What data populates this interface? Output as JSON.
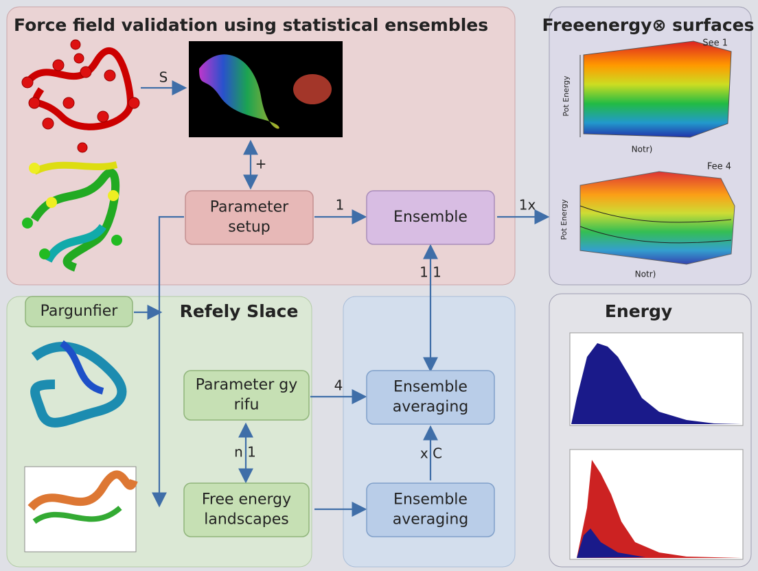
{
  "header": {
    "title": "Force field validation using statistical ensembles"
  },
  "panels": {
    "surfaces": {
      "title": "Freeenergy⊗ surfaces",
      "plot1": {
        "label": "See 1",
        "ylabel": "Pot Energy",
        "xlabel": "Notr)"
      },
      "plot2": {
        "label": "Fee 4",
        "ylabel": "Pot Energy",
        "xlabel": "Notr)"
      }
    },
    "refine": {
      "title": "Refely Slace"
    },
    "energy": {
      "title": "Energy"
    }
  },
  "nodes": [
    {
      "label": [
        "Parameter",
        "setup"
      ]
    },
    {
      "label": [
        "Ensemble"
      ]
    },
    {
      "label": [
        "Pargunfier"
      ]
    },
    {
      "label": [
        "Parameter gy",
        "rifu"
      ]
    },
    {
      "label": [
        "Ensemble",
        "averaging"
      ]
    },
    {
      "label": [
        "Free energy",
        "landscapes"
      ]
    },
    {
      "label": [
        "Ensemble",
        "averaging"
      ]
    }
  ],
  "edges": [
    {
      "label": "S"
    },
    {
      "label": "+"
    },
    {
      "label": "1"
    },
    {
      "label": "1x"
    },
    {
      "label": "1 1"
    },
    {
      "label": "4"
    },
    {
      "label": "n 1"
    },
    {
      "label": "x C"
    }
  ]
}
